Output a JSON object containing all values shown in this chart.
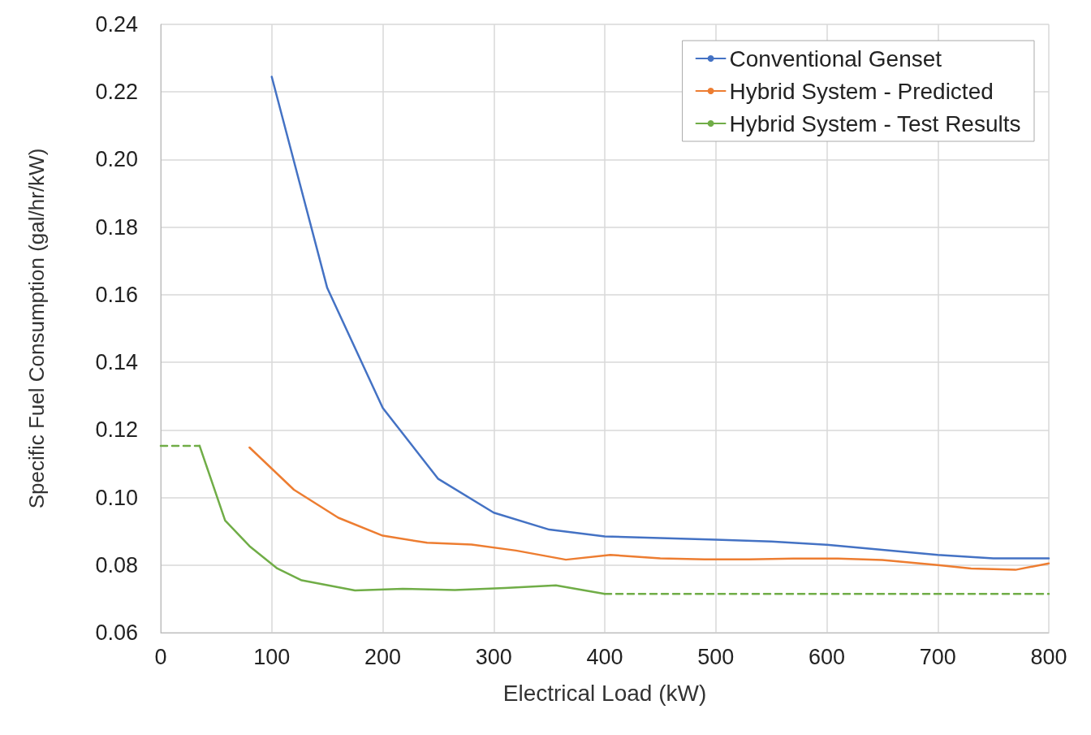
{
  "chart_data": {
    "type": "line",
    "xlabel": "Electrical Load (kW)",
    "ylabel": "Specific Fuel Consumption (gal/hr/kW)",
    "xlim": [
      0,
      800
    ],
    "xticks": [
      0,
      100,
      200,
      300,
      400,
      500,
      600,
      700,
      800
    ],
    "ylim": [
      0.06,
      0.24
    ],
    "yticks": [
      {
        "value": 0.06,
        "label": "0.06"
      },
      {
        "value": 0.08,
        "label": "0.08"
      },
      {
        "value": 0.1,
        "label": "0.10"
      },
      {
        "value": 0.12,
        "label": "0.12"
      },
      {
        "value": 0.14,
        "label": "0.14"
      },
      {
        "value": 0.16,
        "label": "0.16"
      },
      {
        "value": 0.18,
        "label": "0.18"
      },
      {
        "value": 0.2,
        "label": "0.20"
      },
      {
        "value": 0.22,
        "label": "0.22"
      },
      {
        "value": 0.24,
        "label": "0.24"
      }
    ],
    "grid": true,
    "legend": "top right",
    "marker": "none",
    "line_style": "solid",
    "series": [
      {
        "name": "Conventional Genset",
        "color": "#4472c4",
        "x": [
          100,
          150,
          200,
          250,
          300,
          350,
          400,
          450,
          500,
          550,
          600,
          650,
          700,
          750,
          800
        ],
        "values": [
          0.2245,
          0.162,
          0.1265,
          0.1055,
          0.0955,
          0.0905,
          0.0885,
          0.088,
          0.0875,
          0.087,
          0.086,
          0.0845,
          0.083,
          0.082,
          0.082
        ]
      },
      {
        "name": "Hybrid System - Predicted",
        "color": "#ed7d31",
        "x": [
          80,
          120,
          160,
          200,
          240,
          280,
          320,
          365,
          405,
          450,
          490,
          530,
          570,
          610,
          650,
          700,
          730,
          770,
          800
        ],
        "values": [
          0.1148,
          0.1023,
          0.094,
          0.0887,
          0.0866,
          0.0861,
          0.0843,
          0.0816,
          0.083,
          0.082,
          0.0817,
          0.0817,
          0.0819,
          0.0819,
          0.0815,
          0.08,
          0.079,
          0.0786,
          0.0805
        ]
      },
      {
        "name": "Hybrid System - Test Results",
        "color": "#70ad47",
        "x": [
          35,
          58,
          80,
          105,
          127,
          175,
          218,
          265,
          310,
          356,
          400
        ],
        "values": [
          0.1153,
          0.0932,
          0.0856,
          0.079,
          0.0755,
          0.0725,
          0.073,
          0.0726,
          0.0732,
          0.074,
          0.0715
        ]
      },
      {
        "color": "#70ad47",
        "line_style": "dashed",
        "x": [
          0,
          35
        ],
        "values": [
          0.1153,
          0.1153
        ]
      },
      {
        "color": "#70ad47",
        "line_style": "dashed",
        "x": [
          400,
          800
        ],
        "values": [
          0.0715,
          0.0715
        ]
      }
    ]
  }
}
